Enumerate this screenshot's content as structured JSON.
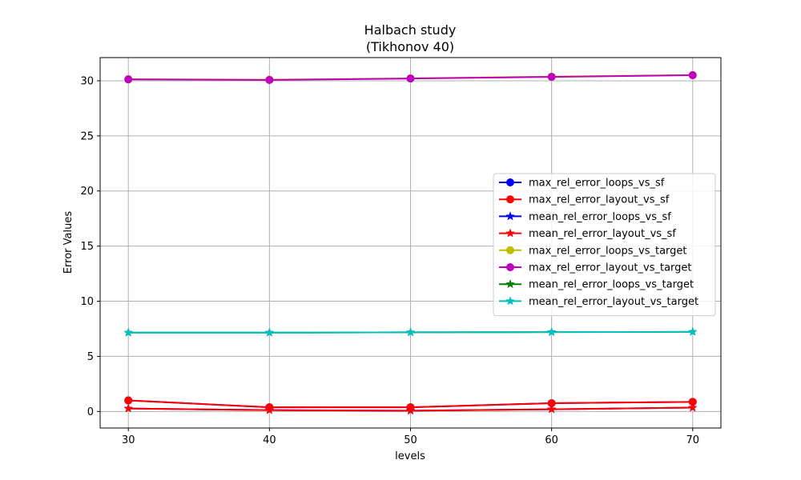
{
  "chart_data": {
    "type": "line",
    "title_line1": "Halbach study",
    "title_line2": "(Tikhonov 40)",
    "xlabel": "levels",
    "ylabel": "Error Values",
    "x": [
      30,
      40,
      50,
      60,
      70
    ],
    "xticks": [
      "30",
      "40",
      "50",
      "60",
      "70"
    ],
    "yticks": [
      "0",
      "5",
      "10",
      "15",
      "20",
      "25",
      "30"
    ],
    "ytick_values": [
      0,
      5,
      10,
      15,
      20,
      25,
      30
    ],
    "xlim": [
      28,
      72
    ],
    "ylim": [
      -1.5,
      32.1
    ],
    "grid": true,
    "legend_position": "center-right",
    "series": [
      {
        "name": "max_rel_error_loops_vs_sf",
        "color": "#0000ff",
        "marker": "circle",
        "values": [
          1.0,
          0.38,
          0.38,
          0.75,
          0.87
        ]
      },
      {
        "name": "max_rel_error_layout_vs_sf",
        "color": "#ff0000",
        "marker": "circle",
        "values": [
          1.0,
          0.38,
          0.38,
          0.75,
          0.87
        ]
      },
      {
        "name": "mean_rel_error_loops_vs_sf",
        "color": "#0000ff",
        "marker": "star",
        "values": [
          0.27,
          0.12,
          0.07,
          0.2,
          0.35
        ]
      },
      {
        "name": "mean_rel_error_layout_vs_sf",
        "color": "#ff0000",
        "marker": "star",
        "values": [
          0.27,
          0.12,
          0.07,
          0.2,
          0.35
        ]
      },
      {
        "name": "max_rel_error_loops_vs_target",
        "color": "#bfbf00",
        "marker": "circle",
        "values": [
          30.15,
          30.1,
          30.22,
          30.38,
          30.52
        ]
      },
      {
        "name": "max_rel_error_layout_vs_target",
        "color": "#bf00bf",
        "marker": "circle",
        "values": [
          30.12,
          30.07,
          30.2,
          30.35,
          30.5
        ]
      },
      {
        "name": "mean_rel_error_loops_vs_target",
        "color": "#008000",
        "marker": "star",
        "values": [
          7.15,
          7.15,
          7.18,
          7.2,
          7.22
        ]
      },
      {
        "name": "mean_rel_error_layout_vs_target",
        "color": "#00bfbf",
        "marker": "star",
        "values": [
          7.15,
          7.15,
          7.18,
          7.2,
          7.22
        ]
      }
    ]
  }
}
